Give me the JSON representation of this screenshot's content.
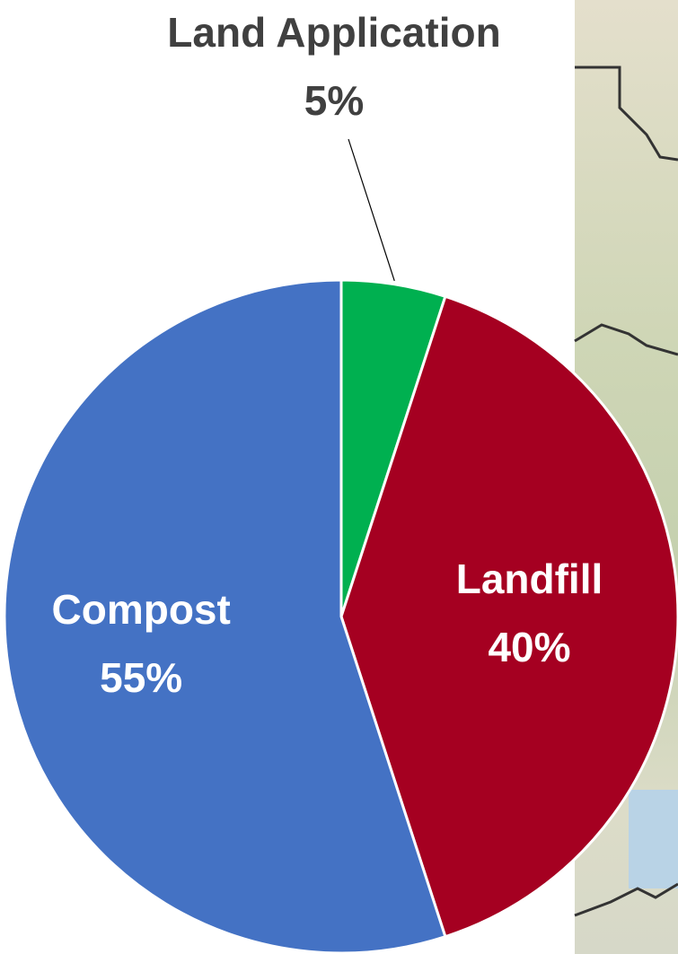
{
  "chart_data": {
    "type": "pie",
    "categories": [
      "Land Application",
      "Landfill",
      "Compost"
    ],
    "values": [
      5,
      40,
      55
    ],
    "value_labels": [
      "5%",
      "40%",
      "55%"
    ],
    "colors": [
      "#00b050",
      "#a50021",
      "#4472c4"
    ]
  }
}
